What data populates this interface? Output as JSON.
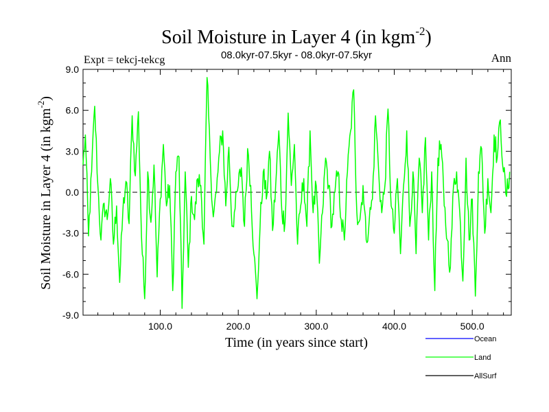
{
  "chart_data": {
    "type": "line",
    "title_main": "Soil Moisture in Layer 4 (in kgm",
    "title_sup": "-2",
    "title_close": ")",
    "subtitle_left": "Expt = tekcj-tekcg",
    "subtitle_center": "08.0kyr-07.5kyr - 08.0kyr-07.5kyr",
    "subtitle_right": "Ann",
    "xlabel": "Time (in years since start)",
    "ylabel_main": "Soil Moisture in Layer 4 (in kgm",
    "ylabel_sup": "-2",
    "ylabel_close": ")",
    "xlim": [
      1,
      550
    ],
    "ylim": [
      -9,
      9
    ],
    "x_ticks": [
      100,
      200,
      300,
      400,
      500
    ],
    "x_tick_labels": [
      "100.0",
      "200.0",
      "300.0",
      "400.0",
      "500.0"
    ],
    "y_ticks": [
      9,
      6,
      3,
      0,
      -3,
      -6,
      -9
    ],
    "y_tick_labels": [
      "9.0",
      "6.0",
      "3.0",
      "0.0",
      "-3.0",
      "-6.0",
      "-9.0"
    ],
    "zero_line": 0,
    "legend_position": "bottom-right",
    "series": [
      {
        "name": "Land",
        "color": "#00ff00",
        "x": [
          1,
          4,
          8,
          12,
          16,
          20,
          24,
          28,
          32,
          36,
          40,
          44,
          48,
          52,
          56,
          60,
          64,
          68,
          72,
          76,
          80,
          84,
          88,
          92,
          96,
          100,
          104,
          108,
          112,
          116,
          120,
          124,
          128,
          132,
          136,
          140,
          144,
          148,
          152,
          156,
          160,
          164,
          168,
          172,
          176,
          180,
          184,
          188,
          192,
          196,
          200,
          204,
          208,
          212,
          216,
          220,
          224,
          228,
          232,
          236,
          240,
          244,
          248,
          252,
          256,
          260,
          264,
          268,
          272,
          276,
          280,
          284,
          288,
          292,
          296,
          300,
          304,
          308,
          312,
          316,
          320,
          324,
          328,
          332,
          336,
          340,
          344,
          348,
          352,
          356,
          360,
          364,
          368,
          372,
          376,
          380,
          384,
          388,
          392,
          396,
          400,
          404,
          408,
          412,
          416,
          420,
          424,
          428,
          432,
          436,
          440,
          444,
          448,
          452,
          456,
          460,
          464,
          468,
          472,
          476,
          480,
          484,
          488,
          492,
          496,
          500,
          504,
          508,
          512,
          516,
          520,
          524,
          528,
          532,
          536,
          540,
          544,
          548
        ],
        "values": [
          2.0,
          4.2,
          -3.2,
          1.5,
          6.3,
          0.5,
          -3.5,
          -0.8,
          -2.0,
          1.0,
          -3.8,
          -1.0,
          -6.6,
          -1.4,
          0.8,
          -2.3,
          5.6,
          1.2,
          5.9,
          -3.3,
          -7.8,
          1.5,
          -2.2,
          2.0,
          -6.2,
          -0.5,
          3.5,
          -1.0,
          0.5,
          -7.2,
          1.5,
          2.6,
          -8.5,
          1.5,
          -5.5,
          -0.3,
          -2.0,
          1.0,
          0.5,
          -3.8,
          8.4,
          2.5,
          -1.8,
          0.0,
          3.0,
          4.5,
          -1.0,
          3.3,
          -2.5,
          -1.2,
          0.5,
          1.8,
          -2.5,
          3.2,
          0.5,
          -4.5,
          -7.8,
          -2.5,
          1.5,
          -0.5,
          3.0,
          -2.8,
          0.5,
          4.5,
          -1.5,
          -2.2,
          5.8,
          0.5,
          3.5,
          -3.8,
          -1.0,
          1.0,
          -2.5,
          4.5,
          -1.5,
          0.5,
          -5.2,
          -1.5,
          2.5,
          0.5,
          -2.5,
          0.0,
          1.5,
          -2.0,
          -3.5,
          1.5,
          4.5,
          7.5,
          -1.5,
          -2.0,
          0.5,
          -3.5,
          -2.0,
          -0.5,
          5.6,
          1.5,
          -1.5,
          0.5,
          6.1,
          -1.0,
          -3.0,
          1.0,
          -4.5,
          0.5,
          4.5,
          -2.5,
          1.5,
          -4.5,
          2.5,
          -1.5,
          4.0,
          -3.5,
          1.5,
          -7.2,
          2.5,
          3.5,
          -1.0,
          -3.5,
          -5.5,
          0.5,
          1.5,
          -1.5,
          -6.5,
          2.5,
          -3.5,
          -0.5,
          -7.6,
          1.5,
          3.2,
          -3.0,
          1.0,
          -1.5,
          4.2,
          2.5,
          5.3,
          1.5,
          -0.3,
          1.5
        ]
      },
      {
        "name": "Ocean",
        "color": "#0000ff",
        "x": [],
        "values": []
      },
      {
        "name": "AllSurf",
        "color": "#000000",
        "x": [],
        "values": []
      }
    ]
  },
  "legend": [
    {
      "label": "Ocean",
      "color": "#0000ff"
    },
    {
      "label": "Land",
      "color": "#00ff00"
    },
    {
      "label": "AllSurf",
      "color": "#000000"
    }
  ]
}
